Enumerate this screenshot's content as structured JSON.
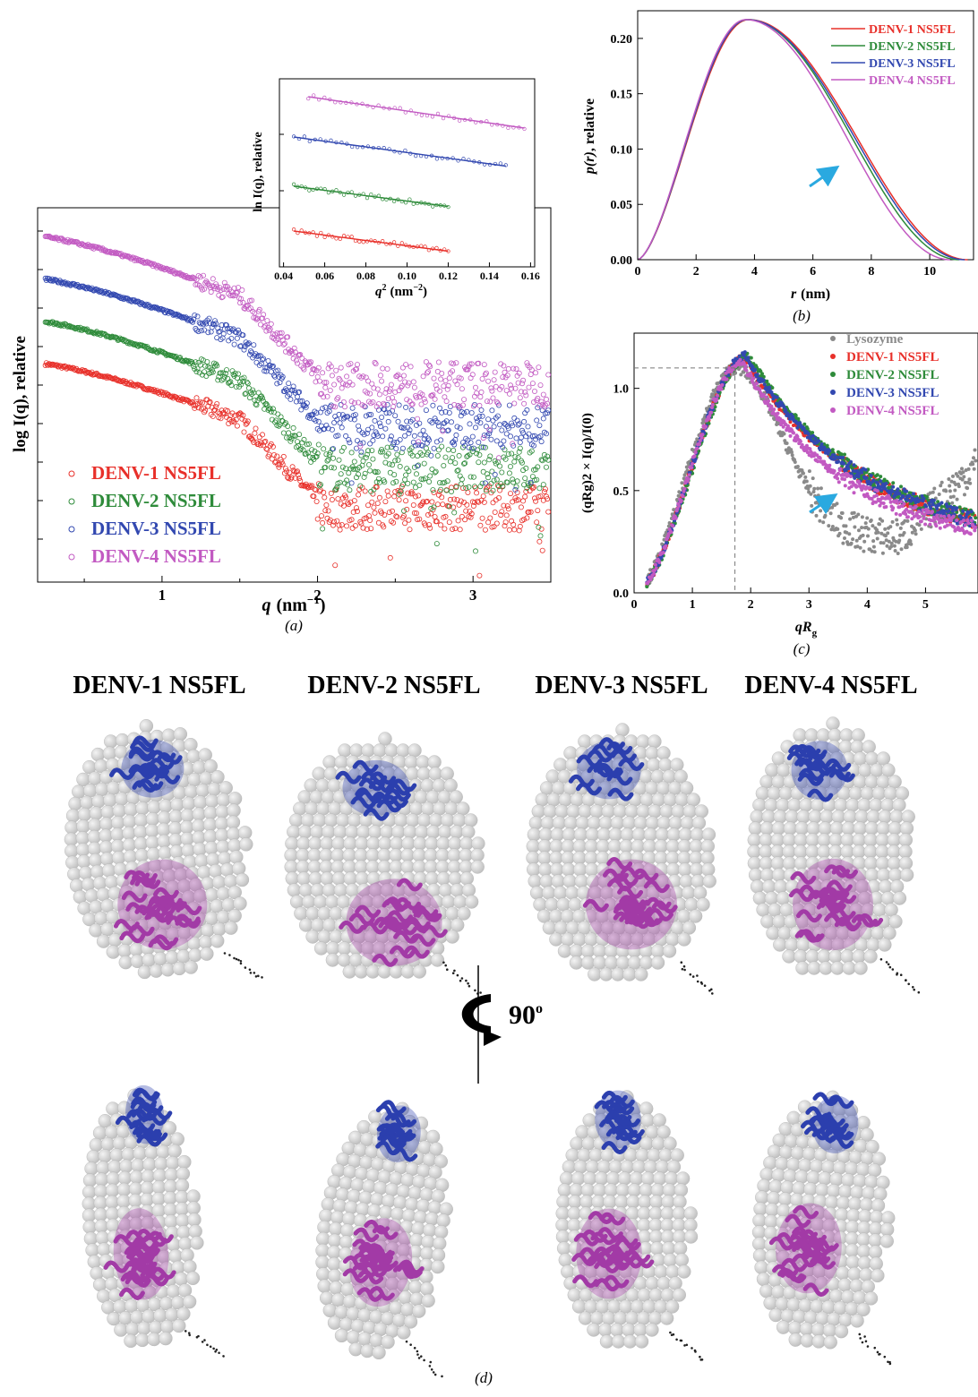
{
  "colors": {
    "denv1": "#e8302a",
    "denv2": "#2e8b3a",
    "denv3": "#3248b0",
    "denv4": "#c25ac2",
    "lysozyme": "#8a8a8a",
    "arrow": "#2aa9e0",
    "sphere": "#cfcfcf",
    "n_domain": "#2c3fae",
    "c_domain": "#a23aa6"
  },
  "labels": {
    "panel_a": "(a)",
    "panel_b": "(b)",
    "panel_c": "(c)",
    "panel_d": "(d)",
    "rotation": "90",
    "rotation_sup": "o"
  },
  "chart_data": [
    {
      "id": "a",
      "type": "scatter",
      "xlabel_main": "q",
      "xlabel_unit": "(nm",
      "xlabel_exp": "−1",
      "xlabel_close": ")",
      "ylabel": "log I(q), relative",
      "xlim": [
        0.2,
        3.5
      ],
      "x_ticks": [
        "1",
        "2",
        "3"
      ],
      "legend_position": "bottom-left",
      "series": [
        {
          "name": "DENV-1 NS5FL",
          "start": 6.6,
          "mid": 5.8,
          "end": 4.55
        },
        {
          "name": "DENV-2 NS5FL",
          "start": 7.2,
          "mid": 6.35,
          "end": 5.1
        },
        {
          "name": "DENV-3 NS5FL",
          "start": 7.8,
          "mid": 6.95,
          "end": 5.7
        },
        {
          "name": "DENV-4 NS5FL",
          "start": 8.4,
          "mid": 7.55,
          "end": 6.3
        }
      ],
      "inset": {
        "type": "scatter",
        "xlabel": "q",
        "xlabel_exp": "2",
        "xlabel_unit": "(nm",
        "xlabel_unit_exp": "−2",
        "xlabel_close": ")",
        "ylabel": "ln I(q), relative",
        "xlim": [
          0.04,
          0.16
        ],
        "x_ticks": [
          "0.04",
          "0.06",
          "0.08",
          "0.10",
          "0.12",
          "0.14",
          "0.16"
        ],
        "series": [
          {
            "name": "DENV-1 NS5FL",
            "x": [
              0.045,
              0.12
            ],
            "y": [
              1.0,
              0.55
            ]
          },
          {
            "name": "DENV-2 NS5FL",
            "x": [
              0.045,
              0.12
            ],
            "y": [
              2.0,
              1.55
            ]
          },
          {
            "name": "DENV-3 NS5FL",
            "x": [
              0.045,
              0.148
            ],
            "y": [
              3.1,
              2.45
            ]
          },
          {
            "name": "DENV-4 NS5FL",
            "x": [
              0.052,
              0.157
            ],
            "y": [
              4.0,
              3.3
            ]
          }
        ]
      }
    },
    {
      "id": "b",
      "type": "line",
      "xlabel": "r",
      "xlabel_unit": "(nm)",
      "ylabel_main": "p(r)",
      "ylabel_rest": ", relative",
      "xlim": [
        0,
        11.5
      ],
      "ylim": [
        0,
        0.225
      ],
      "x_ticks": [
        "0",
        "2",
        "4",
        "6",
        "8",
        "10"
      ],
      "y_ticks": [
        "0.00",
        "0.05",
        "0.10",
        "0.15",
        "0.20"
      ],
      "legend_position": "top-right",
      "series": [
        {
          "name": "DENV-1 NS5FL",
          "dmax": 11.3,
          "peak_r": 3.8,
          "peak_p": 0.217
        },
        {
          "name": "DENV-2 NS5FL",
          "dmax": 11.0,
          "peak_r": 3.75,
          "peak_p": 0.217
        },
        {
          "name": "DENV-3 NS5FL",
          "dmax": 11.2,
          "peak_r": 3.75,
          "peak_p": 0.217
        },
        {
          "name": "DENV-4 NS5FL",
          "dmax": 10.7,
          "peak_r": 3.7,
          "peak_p": 0.217
        }
      ]
    },
    {
      "id": "c",
      "type": "scatter",
      "xlabel_main": "qR",
      "xlabel_sub": "g",
      "ylabel": "(qRg)2 × I(q)/I(0)",
      "xlim": [
        0,
        5.9
      ],
      "ylim": [
        0,
        1.27
      ],
      "x_ticks": [
        "0",
        "1",
        "2",
        "3",
        "4",
        "5"
      ],
      "y_ticks": [
        "0.0",
        "0.5",
        "1.0"
      ],
      "reference_x": 1.73,
      "reference_y": 1.1,
      "legend_position": "top-right",
      "series": [
        {
          "name": "Lysozyme",
          "peak_x": 1.73,
          "peak_y": 1.1
        },
        {
          "name": "DENV-1 NS5FL",
          "peak_x": 1.9,
          "peak_y": 1.15
        },
        {
          "name": "DENV-2 NS5FL",
          "peak_x": 1.95,
          "peak_y": 1.16
        },
        {
          "name": "DENV-3 NS5FL",
          "peak_x": 1.9,
          "peak_y": 1.16
        },
        {
          "name": "DENV-4 NS5FL",
          "peak_x": 1.85,
          "peak_y": 1.13
        }
      ]
    }
  ],
  "models": {
    "titles": [
      "DENV-1 NS5FL",
      "DENV-2 NS5FL",
      "DENV-3 NS5FL",
      "DENV-4 NS5FL"
    ]
  }
}
